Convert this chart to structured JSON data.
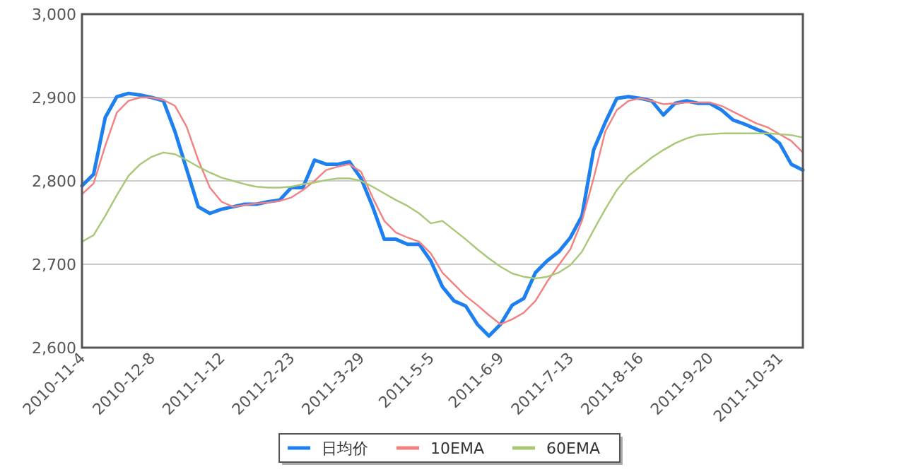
{
  "chart_data": {
    "type": "line",
    "categories": [
      "2010-11-4",
      null,
      null,
      null,
      null,
      null,
      "2010-12-8",
      null,
      null,
      null,
      null,
      null,
      "2011-1-12",
      null,
      null,
      null,
      null,
      null,
      "2011-2-23",
      null,
      null,
      null,
      null,
      null,
      "2011-3-29",
      null,
      null,
      null,
      null,
      null,
      "2011-5-5",
      null,
      null,
      null,
      null,
      null,
      "2011-6-9",
      null,
      null,
      null,
      null,
      null,
      "2011-7-13",
      null,
      null,
      null,
      null,
      null,
      "2011-8-16",
      null,
      null,
      null,
      null,
      null,
      "2011-9-20",
      null,
      null,
      null,
      null,
      null,
      "2011-10-31",
      null,
      null
    ],
    "series": [
      {
        "name": "日均价",
        "color": "#1e7ff0",
        "values": [
          2794,
          2808,
          2876,
          2901,
          2905,
          2903,
          2900,
          2896,
          2859,
          2814,
          2769,
          2761,
          2766,
          2769,
          2772,
          2772,
          2775,
          2777,
          2792,
          2792,
          2825,
          2820,
          2820,
          2823,
          2803,
          2769,
          2730,
          2730,
          2724,
          2724,
          2704,
          2673,
          2656,
          2650,
          2628,
          2614,
          2628,
          2651,
          2659,
          2690,
          2704,
          2715,
          2732,
          2758,
          2837,
          2870,
          2899,
          2901,
          2899,
          2896,
          2879,
          2893,
          2896,
          2893,
          2893,
          2885,
          2873,
          2868,
          2862,
          2856,
          2845,
          2820,
          2813
        ]
      },
      {
        "name": "10EMA",
        "color": "#f48080",
        "values": [
          2784,
          2797,
          2842,
          2882,
          2896,
          2900,
          2900,
          2897,
          2890,
          2865,
          2825,
          2792,
          2775,
          2769,
          2771,
          2773,
          2774,
          2776,
          2780,
          2789,
          2800,
          2813,
          2817,
          2820,
          2811,
          2780,
          2752,
          2738,
          2732,
          2727,
          2713,
          2690,
          2676,
          2662,
          2651,
          2639,
          2628,
          2634,
          2642,
          2656,
          2679,
          2699,
          2718,
          2752,
          2803,
          2859,
          2885,
          2896,
          2899,
          2896,
          2892,
          2893,
          2894,
          2894,
          2894,
          2890,
          2883,
          2876,
          2869,
          2864,
          2856,
          2848,
          2834
        ]
      },
      {
        "name": "60EMA",
        "color": "#a8c878",
        "values": [
          2727,
          2735,
          2758,
          2783,
          2806,
          2820,
          2829,
          2834,
          2832,
          2825,
          2817,
          2810,
          2804,
          2800,
          2796,
          2793,
          2792,
          2792,
          2793,
          2796,
          2798,
          2801,
          2803,
          2803,
          2800,
          2793,
          2785,
          2777,
          2770,
          2761,
          2749,
          2752,
          2741,
          2730,
          2718,
          2707,
          2697,
          2689,
          2685,
          2683,
          2685,
          2690,
          2699,
          2715,
          2741,
          2766,
          2789,
          2806,
          2817,
          2828,
          2837,
          2845,
          2851,
          2855,
          2856,
          2857,
          2857,
          2857,
          2857,
          2857,
          2856,
          2855,
          2852
        ]
      }
    ],
    "ylim": [
      2600,
      3000
    ],
    "yticks": [
      {
        "value": 2600,
        "label": "2,600"
      },
      {
        "value": 2700,
        "label": "2,700"
      },
      {
        "value": 2800,
        "label": "2,800"
      },
      {
        "value": 2900,
        "label": "2,900"
      },
      {
        "value": 3000,
        "label": "3,000"
      }
    ],
    "grid": "y",
    "legend": "bottom",
    "marker": "none",
    "line_style": "solid"
  }
}
